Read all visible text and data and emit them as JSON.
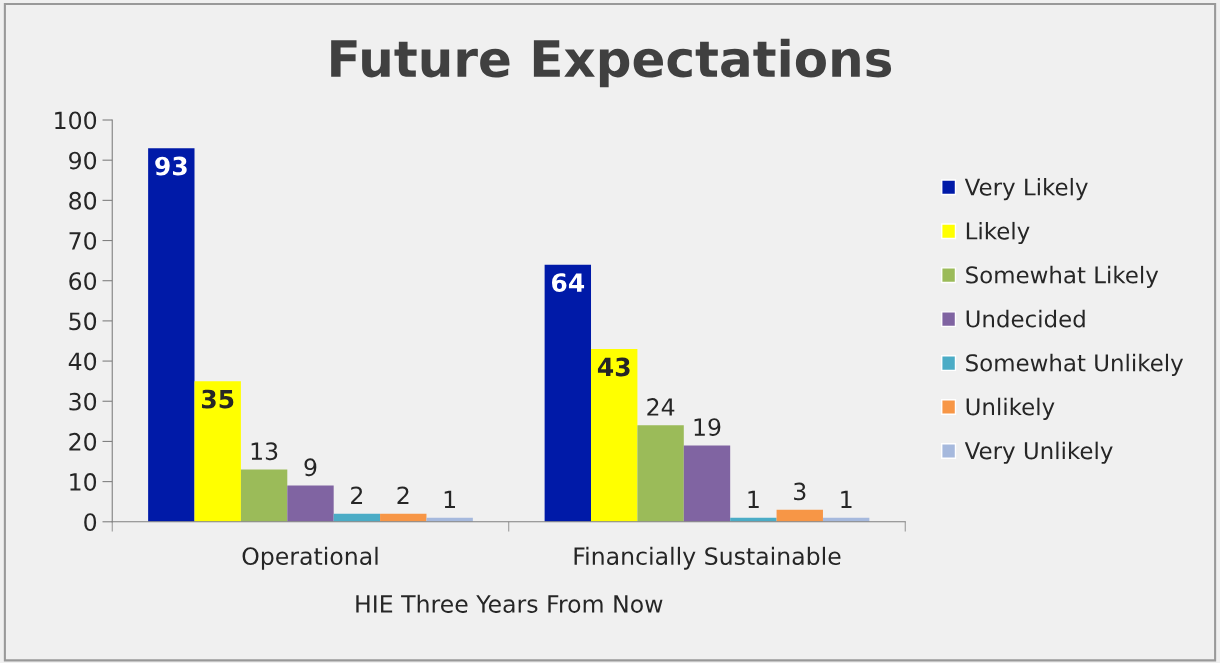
{
  "chart_data": {
    "type": "bar",
    "title": "Future Expectations",
    "xlabel": "HIE Three Years From Now",
    "categories": [
      "Operational",
      "Financially Sustainable"
    ],
    "series": [
      {
        "name": "Very Likely",
        "color": "#001aa8",
        "values": [
          93,
          64
        ]
      },
      {
        "name": "Likely",
        "color": "#ffff00",
        "values": [
          35,
          43
        ]
      },
      {
        "name": "Somewhat Likely",
        "color": "#9bbb59",
        "values": [
          13,
          24
        ]
      },
      {
        "name": "Undecided",
        "color": "#8064a2",
        "values": [
          9,
          19
        ]
      },
      {
        "name": "Somewhat Unlikely",
        "color": "#4bacc6",
        "values": [
          2,
          1
        ]
      },
      {
        "name": "Unlikely",
        "color": "#f79646",
        "values": [
          2,
          3
        ]
      },
      {
        "name": "Very Unlikely",
        "color": "#a6b9dd",
        "values": [
          1,
          1
        ]
      }
    ],
    "ylim": [
      0,
      100
    ],
    "yticks": [
      0,
      10,
      20,
      30,
      40,
      50,
      60,
      70,
      80,
      90,
      100
    ],
    "data_labels": true,
    "legend": "right",
    "grid": false
  }
}
